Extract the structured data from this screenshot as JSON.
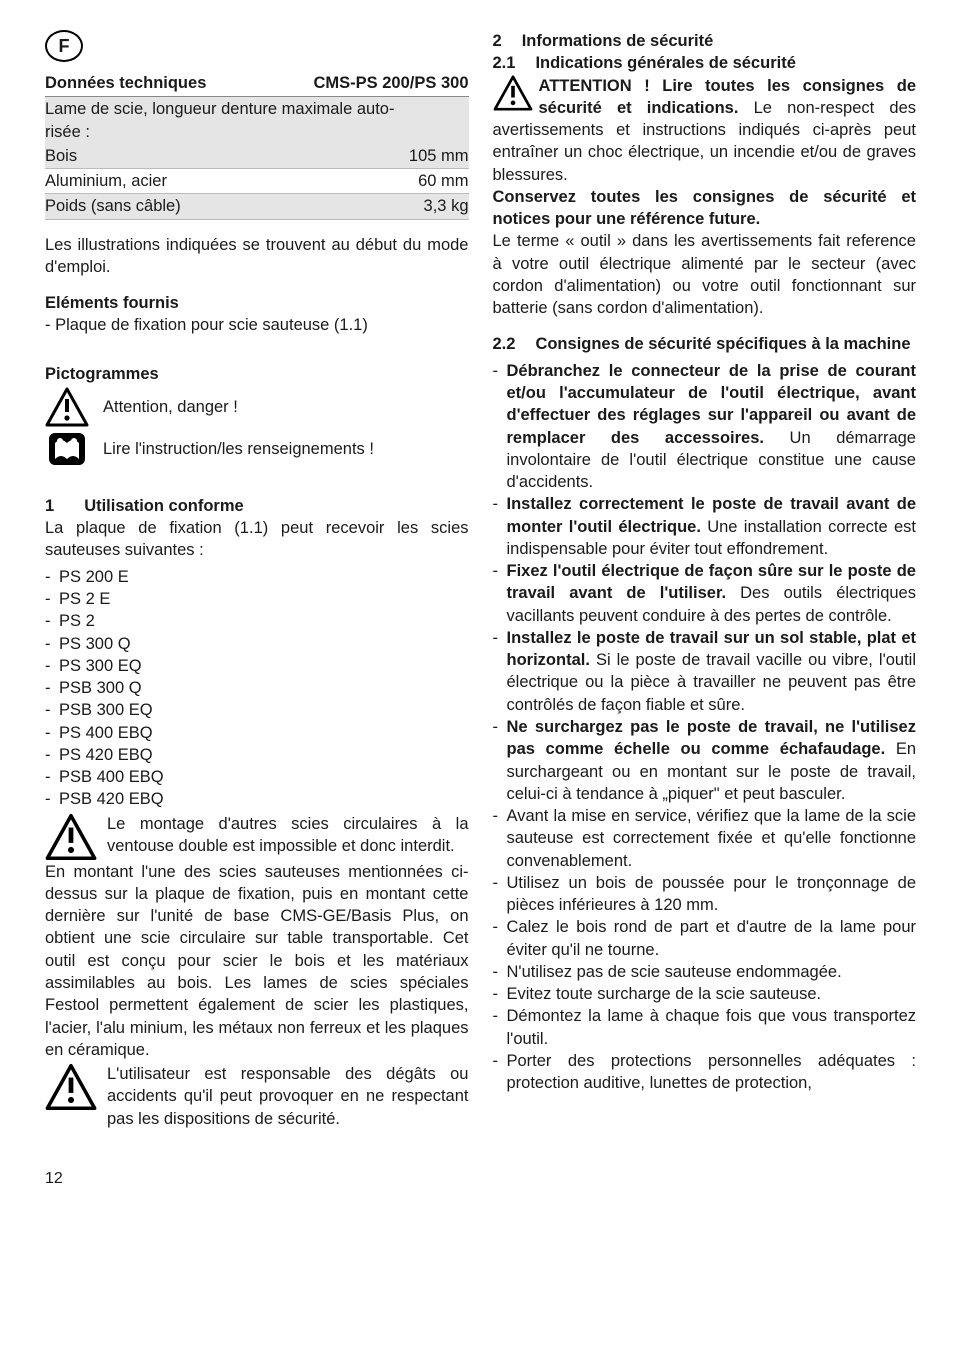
{
  "lang_letter": "F",
  "left": {
    "tech": {
      "header_left": "Données techniques",
      "header_right": "CMS-PS 200/PS 300",
      "band_top": "Lame de scie, longueur denture maximale auto-",
      "band_bottom": "risée :",
      "rows": [
        {
          "l": "Bois",
          "r": "105 mm",
          "shade": true
        },
        {
          "l": "Aluminium, acier",
          "r": "60 mm",
          "shade": false
        },
        {
          "l": "Poids (sans câble)",
          "r": "3,3 kg",
          "shade": true
        }
      ]
    },
    "illus": "Les illustrations indiquées se trouvent au début du mode d'emploi.",
    "elements_head": "Eléments fournis",
    "elements_item": "- Plaque de fixation pour scie sauteuse (1.1)",
    "picto_head": "Pictogrammes",
    "picto_attention": "Attention, danger !",
    "picto_read": "Lire l'instruction/les renseignements !",
    "sec1_num": "1",
    "sec1_title": "Utilisation conforme",
    "sec1_intro": "La plaque de fixation (1.1) peut recevoir les scies sauteuses suivantes :",
    "models": [
      "PS 200 E",
      "PS 2 E",
      "PS 2",
      "PS 300 Q",
      "PS 300 EQ",
      "PSB 300 Q",
      "PSB 300 EQ",
      "PS 400 EBQ",
      "PS 420 EBQ",
      "PSB 400 EBQ",
      "PSB 420 EBQ"
    ],
    "warn1": "Le montage d'autres scies circulaires à la ventouse double est impossible et donc interdit.",
    "longpara": "En montant l'une des scies sauteuses mentionnées ci-dessus sur la plaque de fixation, puis en montant cette dernière sur l'unité de base CMS-GE/Basis Plus, on obtient une scie circulaire sur table transportable. Cet outil est conçu pour scier le bois et les matériaux assimilables au bois. Les lames de scies spéciales Festool permettent également de scier les plastiques, l'acier, l'alu minium, les métaux non ferreux et les plaques en céramique.",
    "warn2": "L'utilisateur est responsable des dégâts ou accidents qu'il peut provoquer en ne respectant pas les dispositions de sécurité."
  },
  "right": {
    "sec2_num": "2",
    "sec2_title": "Informations de sécurité",
    "sec21_num": "2.1",
    "sec21_title": "Indications générales de sécurité",
    "attn_lead": "ATTENTION ! Lire toutes les consignes de sécurité et indications.",
    "attn_body": " Le non-respect des avertissements et instructions indiqués ci-après peut entraîner un choc électrique, un incendie et/ou de graves blessures.",
    "conservez": "Conservez toutes les consignes de sécurité et notices pour une référence future.",
    "terme": "Le terme « outil » dans les avertissements fait reference à votre outil électrique alimenté par le secteur (avec cordon d'alimentation) ou votre outil fonctionnant sur batterie (sans cordon d'alimentation).",
    "sec22_num": "2.2",
    "sec22_title": "Consignes de sécurité spécifiques à la machine",
    "bullets": [
      {
        "bold": "Débranchez le connecteur de la prise de courant et/ou l'accumulateur de l'outil électrique, avant d'effectuer des réglages sur l'appareil ou avant de remplacer des accessoires.",
        "rest": " Un démarrage involontaire de l'outil électrique constitue une cause d'accidents."
      },
      {
        "bold": "Installez correctement le poste de travail avant de monter l'outil électrique.",
        "rest": " Une installation correcte est indispensable pour éviter tout effondrement."
      },
      {
        "bold": "Fixez l'outil électrique de façon sûre sur le poste de travail avant de l'utiliser.",
        "rest": " Des outils électriques vacillants peuvent conduire à des pertes de contrôle."
      },
      {
        "bold": "Installez le poste de travail sur un sol stable, plat et horizontal.",
        "rest": " Si le poste de travail vacille ou vibre, l'outil électrique ou la pièce à travailler ne peuvent pas être contrôlés de façon fiable et sûre."
      },
      {
        "bold": "Ne surchargez pas le poste de travail, ne l'utilisez pas comme échelle ou comme échafaudage.",
        "rest": " En surchargeant ou en montant sur le poste de travail, celui-ci à tendance à „piquer\" et peut basculer."
      },
      {
        "plain": "Avant la mise en service, vérifiez que la lame de la scie sauteuse est correctement fixée et qu'elle fonctionne convenablement."
      },
      {
        "plain": "Utilisez un bois de poussée pour le tronçonnage de pièces inférieures à 120 mm."
      },
      {
        "plain": "Calez le bois rond de part et d'autre de la lame pour éviter qu'il ne tourne."
      },
      {
        "plain": "N'utilisez pas de scie sauteuse endommagée."
      },
      {
        "plain": "Evitez toute surcharge de la scie sauteuse."
      },
      {
        "plain": "Démontez la lame à chaque fois que vous transportez l'outil."
      },
      {
        "plain": "Porter des protections personnelles adéquates : protection auditive, lunettes de protection,"
      }
    ]
  },
  "page": "12"
}
